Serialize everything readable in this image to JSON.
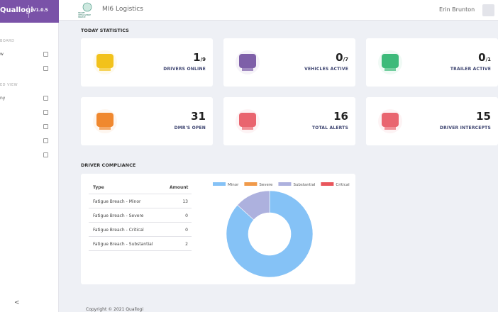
{
  "sidebar": {
    "brand": "Quallogi",
    "version": "V1.0.5",
    "sections": [
      {
        "title": "BOARD",
        "items": [
          "w",
          ""
        ]
      },
      {
        "title": "ED VIEW",
        "items": [
          "ny",
          "",
          "",
          "",
          ""
        ]
      }
    ],
    "collapse": "<"
  },
  "header": {
    "company": "MI6 Logistics",
    "logo_text": "SECRET INTELLIGENCE SERVICE",
    "user": "Erin Brunton"
  },
  "statistics": {
    "title": "TODAY STATISTICS",
    "cards": [
      {
        "value": 1,
        "of": "/9",
        "label": "DRIVERS ONLINE",
        "color": "#f2c21b"
      },
      {
        "value": 0,
        "of": "/7",
        "label": "VEHICLES ACTIVE",
        "color": "#7e5fa8"
      },
      {
        "value": 0,
        "of": "/1",
        "label": "TRAILER ACTIVE",
        "color": "#3dba7a"
      },
      {
        "value": 31,
        "label": "DMR'S OPEN",
        "color": "#f0882e"
      },
      {
        "value": 16,
        "label": "TOTAL ALERTS",
        "color": "#e9656f"
      },
      {
        "value": 15,
        "label": "DRIVER INTERCEPTS",
        "color": "#e9656f"
      }
    ]
  },
  "compliance": {
    "title": "DRIVER COMPLIANCE",
    "table": {
      "columns": [
        "Type",
        "Amount"
      ],
      "rows": [
        [
          "Fatigue Breach - Minor",
          13
        ],
        [
          "Fatigue Breach - Severe",
          0
        ],
        [
          "Fatigue Breach - Critical",
          0
        ],
        [
          "Fatigue Breach - Substantial",
          2
        ]
      ]
    },
    "chart_data": {
      "type": "donut",
      "categories": [
        "Minor",
        "Severe",
        "Substantial",
        "Critical"
      ],
      "colors": [
        "#85c2f6",
        "#f09a4a",
        "#adb1de",
        "#e9565c"
      ],
      "values": [
        13,
        0,
        2,
        0
      ]
    }
  },
  "footer": "Copyright © 2021 Quallogi"
}
